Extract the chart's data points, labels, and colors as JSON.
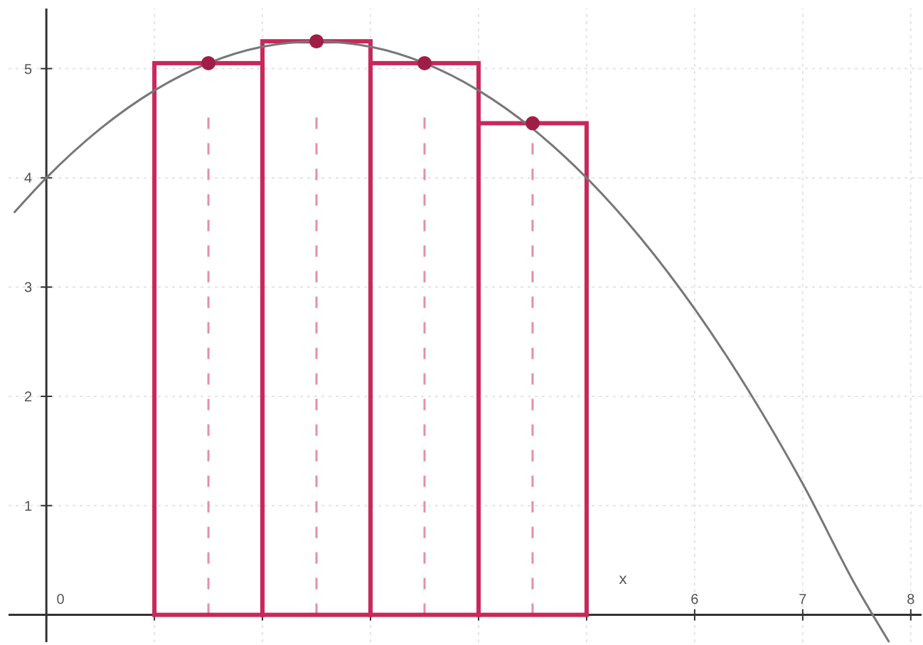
{
  "chart_data": {
    "type": "bar",
    "xlabel": "x",
    "xlim": [
      -0.35,
      8.1
    ],
    "ylim": [
      -0.25,
      5.55
    ],
    "xticks": [
      0,
      {
        "value": 1,
        "label": null
      },
      {
        "value": 2,
        "label": null
      },
      {
        "value": 3,
        "label": null
      },
      {
        "value": 4,
        "label": null
      },
      {
        "value": 5,
        "label": null
      },
      6,
      7,
      8
    ],
    "yticks": [
      1,
      2,
      3,
      4,
      5
    ],
    "grid": true,
    "series": [
      {
        "color": "#c8285a",
        "x": [
          1.5,
          2.5,
          3.5,
          4.5
        ],
        "values": [
          5.05,
          5.25,
          5.05,
          4.5
        ]
      },
      {
        "type": "line",
        "color": "#777777",
        "marker": "none",
        "x": [
          -0.3,
          0,
          0.5,
          1,
          1.5,
          2,
          2.5,
          3,
          3.5,
          4,
          4.5,
          5,
          5.5,
          6,
          6.5,
          7,
          7.5,
          7.8
        ],
        "values": [
          3.68,
          4,
          4.45,
          4.8,
          5.05,
          5.2,
          5.25,
          5.2,
          5.05,
          4.8,
          4.45,
          4,
          3.45,
          2.8,
          2.05,
          1.2,
          0.25,
          -0.25
        ]
      },
      {
        "type": "scatter",
        "color": "#a01e46",
        "marker": "circle",
        "x": [
          1.5,
          2.5,
          3.5,
          4.5
        ],
        "values": [
          5.05,
          5.25,
          5.05,
          4.5
        ]
      }
    ],
    "ref_lines": [
      {
        "axis": "x",
        "value": 1.5,
        "color": "#e090a8",
        "line_style": "dashed"
      },
      {
        "axis": "x",
        "value": 2.5,
        "color": "#e090a8",
        "line_style": "dashed"
      },
      {
        "axis": "x",
        "value": 3.5,
        "color": "#e090a8",
        "line_style": "dashed"
      },
      {
        "axis": "x",
        "value": 4.5,
        "color": "#e090a8",
        "line_style": "dashed"
      }
    ]
  }
}
